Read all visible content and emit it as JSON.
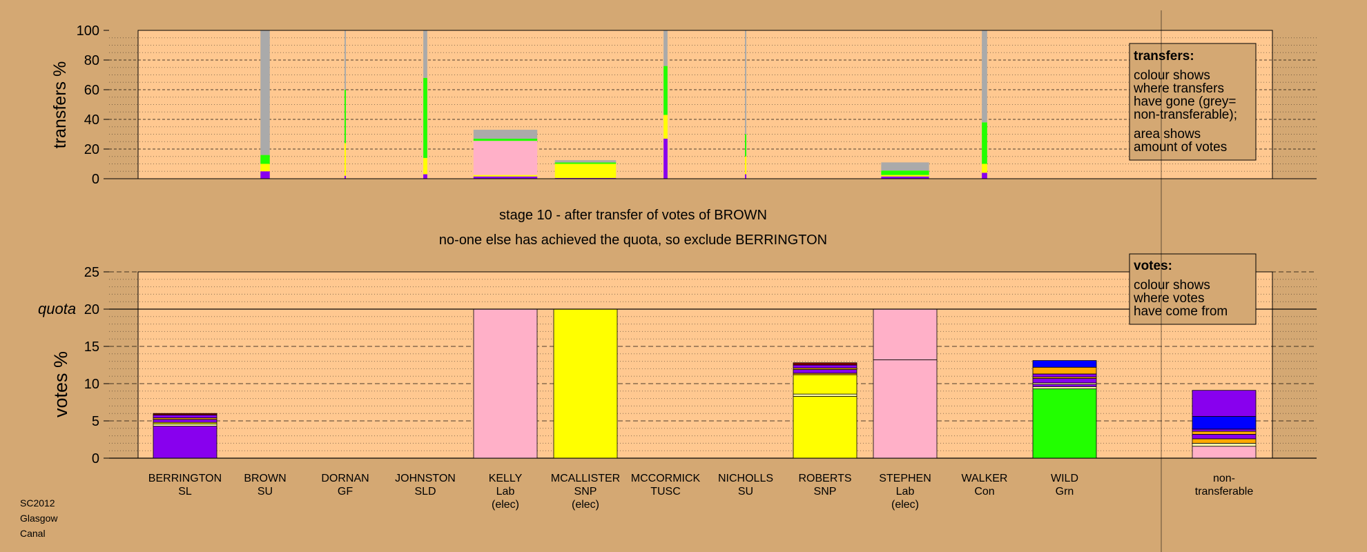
{
  "stage_title": "stage 10 - after transfer of votes of BROWN",
  "stage_subtitle": "no-one else has achieved the quota, so exclude BERRINGTON",
  "footer": [
    "SC2012",
    "Glasgow",
    "Canal"
  ],
  "transfers_legend": {
    "title": "transfers:",
    "lines": [
      "colour shows",
      "where transfers",
      "have gone (grey=",
      "non-transferable);",
      "area shows",
      "amount of votes"
    ]
  },
  "votes_legend": {
    "title": "votes:",
    "lines": [
      "colour shows",
      "where votes",
      "have come from"
    ]
  },
  "colors": {
    "background": "#d4a873",
    "plot": "#ffc890",
    "SL": "#8800ee",
    "SU": "#ffffaa",
    "GF": "#00ff44",
    "SLD": "#ffaa00",
    "Lab": "#ffb0c8",
    "SNP": "#ffff00",
    "TUSC": "#880000",
    "Con": "#0000ff",
    "Grn": "#22ff00",
    "nontransferable": "#aaaaaa"
  },
  "chart_data": [
    {
      "type": "bar",
      "name": "transfers",
      "ylabel": "transfers %",
      "ylim": [
        0,
        100
      ],
      "yticks": [
        0,
        20,
        40,
        60,
        80,
        100
      ],
      "columns": [
        {
          "candidate": "BERRINGTON",
          "width_votes": 0,
          "segments": []
        },
        {
          "candidate": "BROWN",
          "width_votes": 0.35,
          "segments": [
            {
              "party": "SL",
              "value": 5
            },
            {
              "party": "SNP",
              "value": 5
            },
            {
              "party": "Grn",
              "value": 6
            },
            {
              "party": "nontransferable",
              "value": 84
            }
          ]
        },
        {
          "candidate": "DORNAN",
          "width_votes": 0.05,
          "segments": [
            {
              "party": "SL",
              "value": 2
            },
            {
              "party": "SNP",
              "value": 22
            },
            {
              "party": "Grn",
              "value": 36
            },
            {
              "party": "nontransferable",
              "value": 40
            }
          ]
        },
        {
          "candidate": "JOHNSTON",
          "width_votes": 0.15,
          "segments": [
            {
              "party": "SL",
              "value": 3
            },
            {
              "party": "SNP",
              "value": 11
            },
            {
              "party": "Grn",
              "value": 54
            },
            {
              "party": "nontransferable",
              "value": 32
            }
          ]
        },
        {
          "candidate": "KELLY",
          "width_votes": 2.4,
          "segments": [
            {
              "party": "SL",
              "value": 1.5
            },
            {
              "party": "SNP",
              "value": 1
            },
            {
              "party": "Lab",
              "value": 23
            },
            {
              "party": "Grn",
              "value": 1.5
            },
            {
              "party": "nontransferable",
              "value": 6
            }
          ]
        },
        {
          "candidate": "MCALLISTER",
          "width_votes": 2.3,
          "segments": [
            {
              "party": "SL",
              "value": 0.5
            },
            {
              "party": "SNP",
              "value": 9.5
            },
            {
              "party": "Grn",
              "value": 1
            },
            {
              "party": "nontransferable",
              "value": 1.5
            }
          ]
        },
        {
          "candidate": "MCCORMICK",
          "width_votes": 0.15,
          "segments": [
            {
              "party": "SL",
              "value": 27
            },
            {
              "party": "SNP",
              "value": 16
            },
            {
              "party": "Grn",
              "value": 33
            },
            {
              "party": "nontransferable",
              "value": 24
            }
          ]
        },
        {
          "candidate": "NICHOLLS",
          "width_votes": 0.03,
          "segments": [
            {
              "party": "SL",
              "value": 3
            },
            {
              "party": "SNP",
              "value": 12
            },
            {
              "party": "Grn",
              "value": 15
            },
            {
              "party": "nontransferable",
              "value": 70
            }
          ]
        },
        {
          "candidate": "ROBERTS",
          "width_votes": 0,
          "segments": []
        },
        {
          "candidate": "STEPHEN",
          "width_votes": 1.8,
          "segments": [
            {
              "party": "SL",
              "value": 1.5
            },
            {
              "party": "SNP",
              "value": 1
            },
            {
              "party": "Grn",
              "value": 3
            },
            {
              "party": "nontransferable",
              "value": 5.5
            }
          ]
        },
        {
          "candidate": "WALKER",
          "width_votes": 0.2,
          "segments": [
            {
              "party": "SL",
              "value": 4
            },
            {
              "party": "SNP",
              "value": 6
            },
            {
              "party": "Grn",
              "value": 28
            },
            {
              "party": "nontransferable",
              "value": 62
            }
          ]
        },
        {
          "candidate": "WILD",
          "width_votes": 0,
          "segments": []
        }
      ]
    },
    {
      "type": "bar",
      "name": "votes",
      "ylabel": "votes %",
      "ylim": [
        0,
        25
      ],
      "yticks": [
        0,
        5,
        10,
        15,
        20,
        25
      ],
      "quota": 20,
      "quota_label": "quota",
      "categories": [
        {
          "name": "BERRINGTON",
          "party": "SL",
          "elected": ""
        },
        {
          "name": "BROWN",
          "party": "SU",
          "elected": ""
        },
        {
          "name": "DORNAN",
          "party": "GF",
          "elected": ""
        },
        {
          "name": "JOHNSTON",
          "party": "SLD",
          "elected": ""
        },
        {
          "name": "KELLY",
          "party": "Lab",
          "elected": "(elec)"
        },
        {
          "name": "MCALLISTER",
          "party": "SNP",
          "elected": "(elec)"
        },
        {
          "name": "MCCORMICK",
          "party": "TUSC",
          "elected": ""
        },
        {
          "name": "NICHOLLS",
          "party": "SU",
          "elected": ""
        },
        {
          "name": "ROBERTS",
          "party": "SNP",
          "elected": ""
        },
        {
          "name": "STEPHEN",
          "party": "Lab",
          "elected": "(elec)"
        },
        {
          "name": "WALKER",
          "party": "Con",
          "elected": ""
        },
        {
          "name": "WILD",
          "party": "Grn",
          "elected": ""
        },
        {
          "name": "non-",
          "party": "transferable",
          "elected": ""
        }
      ],
      "stacks": [
        [
          {
            "party": "SL",
            "value": 4.3
          },
          {
            "party": "SU",
            "value": 0.3
          },
          {
            "party": "SNP",
            "value": 0.2
          },
          {
            "party": "SL",
            "value": 0.4
          },
          {
            "party": "SLD",
            "value": 0.2
          },
          {
            "party": "SL",
            "value": 0.4
          },
          {
            "party": "TUSC",
            "value": 0.2
          }
        ],
        [],
        [],
        [],
        [
          {
            "party": "Lab",
            "value": 20
          }
        ],
        [
          {
            "party": "SNP",
            "value": 20
          }
        ],
        [],
        [],
        [
          {
            "party": "SNP",
            "value": 8.3
          },
          {
            "party": "SU",
            "value": 0.3
          },
          {
            "party": "SNP",
            "value": 2.6
          },
          {
            "party": "SLD",
            "value": 0.2
          },
          {
            "party": "SL",
            "value": 0.5
          },
          {
            "party": "SLD",
            "value": 0.2
          },
          {
            "party": "SL",
            "value": 0.4
          },
          {
            "party": "TUSC",
            "value": 0.3
          }
        ],
        [
          {
            "party": "Lab",
            "value": 13.2
          },
          {
            "party": "Lab",
            "value": 6.8
          }
        ],
        [],
        [
          {
            "party": "Grn",
            "value": 9.3
          },
          {
            "party": "SU",
            "value": 0.3
          },
          {
            "party": "SL",
            "value": 0.3
          },
          {
            "party": "SU",
            "value": 0.2
          },
          {
            "party": "SL",
            "value": 0.6
          },
          {
            "party": "SLD",
            "value": 0.2
          },
          {
            "party": "SL",
            "value": 0.4
          },
          {
            "party": "SLD",
            "value": 0.9
          },
          {
            "party": "Con",
            "value": 0.9
          }
        ],
        [
          {
            "party": "Lab",
            "value": 1.6
          },
          {
            "party": "SU",
            "value": 0.4
          },
          {
            "party": "SLD",
            "value": 0.6
          },
          {
            "party": "SL",
            "value": 0.6
          },
          {
            "party": "SLD",
            "value": 0.4
          },
          {
            "party": "SL",
            "value": 0.3
          },
          {
            "party": "Con",
            "value": 1.7
          },
          {
            "party": "SL",
            "value": 3.5
          }
        ]
      ]
    }
  ]
}
